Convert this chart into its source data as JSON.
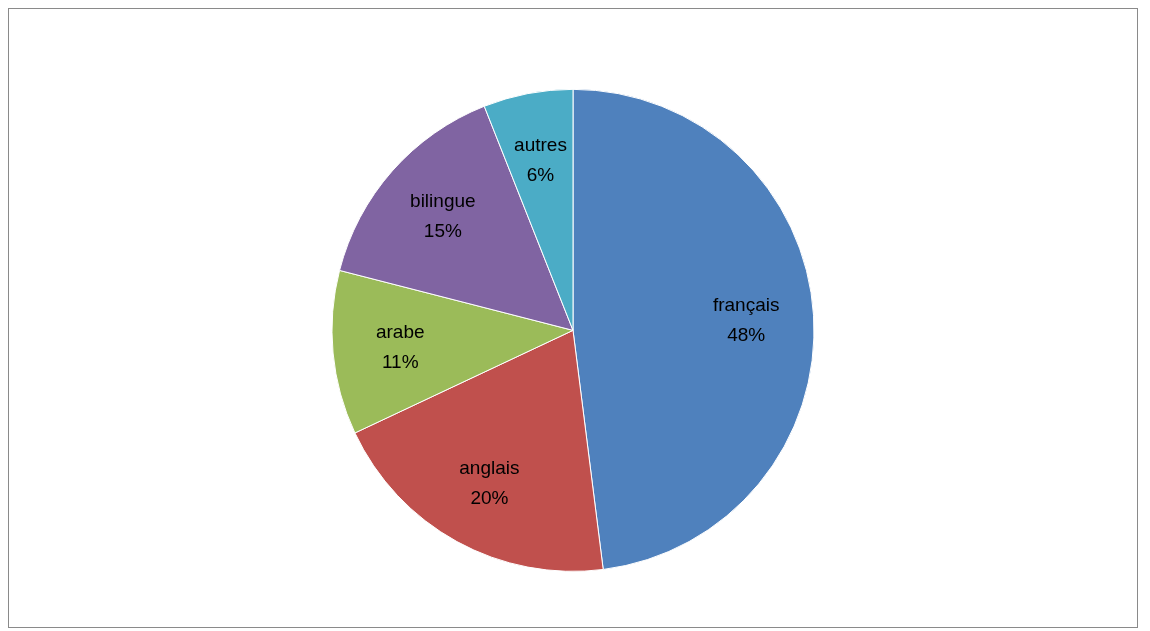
{
  "chart_data": {
    "type": "pie",
    "categories": [
      "français",
      "anglais",
      "arabe",
      "bilingue",
      "autres"
    ],
    "values": [
      48,
      20,
      11,
      15,
      6
    ],
    "colors": [
      "#4f81bd",
      "#c0504d",
      "#9bbb59",
      "#8064a2",
      "#4bacc6"
    ],
    "value_labels": [
      "48%",
      "20%",
      "11%",
      "15%",
      "6%"
    ],
    "legend": false
  }
}
